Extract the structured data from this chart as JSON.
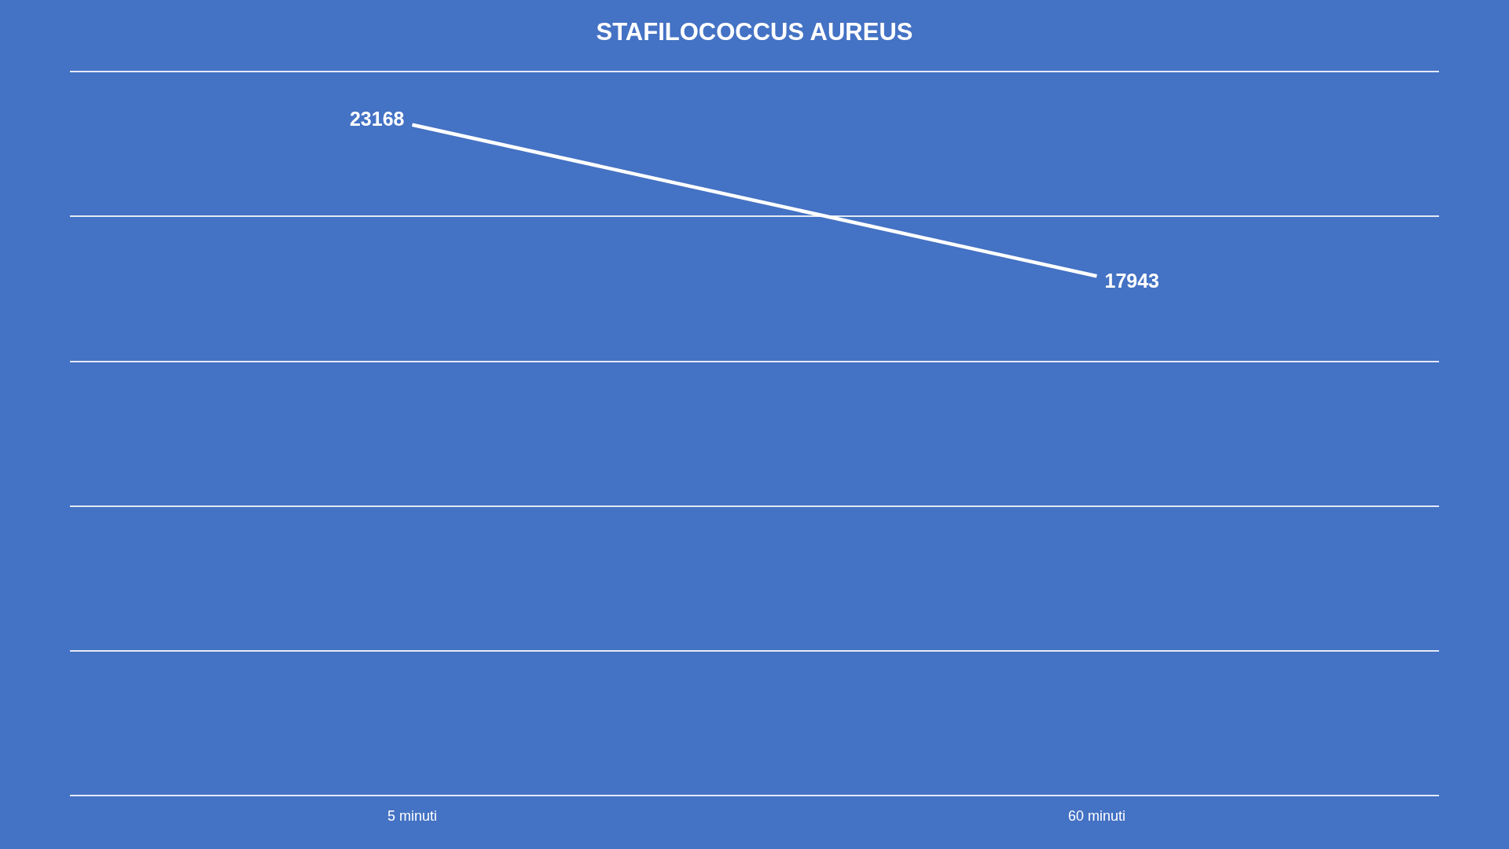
{
  "chart_data": {
    "type": "line",
    "title": "STAFILOCOCCUS AUREUS",
    "categories": [
      "5 minuti",
      "60 minuti"
    ],
    "values": [
      23168,
      17943
    ],
    "color": "#ffffff",
    "ylim": [
      0,
      25000
    ],
    "yticks": [
      {
        "value": 0,
        "label": null
      },
      {
        "value": 5000,
        "label": null
      },
      {
        "value": 10000,
        "label": null
      },
      {
        "value": 15000,
        "label": null
      },
      {
        "value": 20000,
        "label": null
      },
      {
        "value": 25000,
        "label": null
      }
    ],
    "grid": "y",
    "tick_labels": "x",
    "data_labels": true,
    "marker": "none",
    "line_style": "solid",
    "legend": false
  }
}
